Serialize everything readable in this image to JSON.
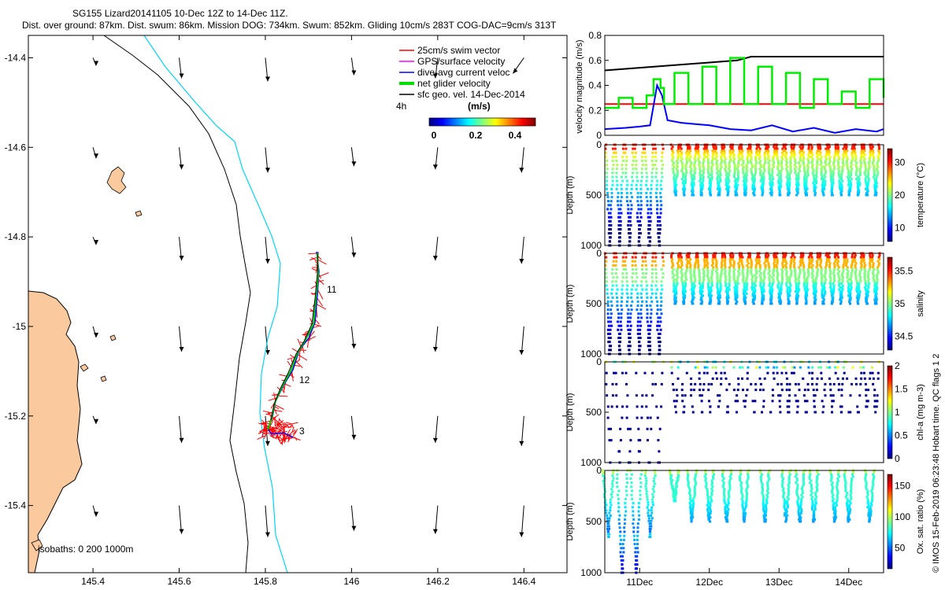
{
  "header": {
    "line1": "SG155 Lizard20141105 10-Dec 12Z to 14-Dec 11Z.",
    "line2": "Dist. over ground: 87km. Dist. swum: 86km. Mission DOG: 734km. Swum: 852km. Gliding 10cm/s 283T COG-DAC=9cm/s 313T"
  },
  "side_credit": "© IMOS 15-Feb-2019 06:23:48 Hobart time. QC flags 1  2",
  "chart_data": [
    {
      "type": "map",
      "name": "glider-track-map",
      "xlim": [
        145.25,
        146.5
      ],
      "ylim": [
        -15.55,
        -14.35
      ],
      "x_ticks": [
        "145.4",
        "145.6",
        "145.8",
        "146",
        "146.2",
        "146.4"
      ],
      "y_ticks": [
        "-14.4",
        "-14.6",
        "-14.8",
        "-15",
        "-15.2",
        "-15.4"
      ],
      "legend": {
        "placement": "top-right",
        "entries": [
          {
            "label": "25cm/s swim vector",
            "color": "#ff0000"
          },
          {
            "label": "GPS/surface velocity",
            "color": "#ff00ff"
          },
          {
            "label": "dive-avg current veloc",
            "color": "#0000ff"
          },
          {
            "label": "net glider velocity",
            "color": "#00cc00"
          },
          {
            "label": "sfc geo. vel. 14-Dec-2014",
            "color": "#000000"
          }
        ],
        "scale_label": "4h",
        "colorbar_unit": "(m/s)",
        "colorbar_ticks": [
          "0",
          "0.2",
          "0.4"
        ]
      },
      "isobaths_label": "isobaths: 0   200  1000m",
      "day_labels": [
        {
          "text": "11",
          "lon": 145.935,
          "lat": -14.895
        },
        {
          "text": "12",
          "lon": 145.875,
          "lat": -15.135
        },
        {
          "text": "3",
          "lon": 145.875,
          "lat": -15.245
        }
      ],
      "geo_vector_grid": {
        "lons": [
          145.4,
          145.6,
          145.8,
          146.0,
          146.2,
          146.4
        ],
        "lats": [
          -14.4,
          -14.6,
          -14.8,
          -15.0,
          -15.2,
          -15.4
        ]
      }
    },
    {
      "type": "line",
      "name": "velocity-magnitude-panel",
      "ylabel": "velocity magnitude (m/s)",
      "ylim": [
        0,
        0.8
      ],
      "y_ticks": [
        "0",
        "0.2",
        "0.4",
        "0.6",
        "0.8"
      ],
      "series": [
        {
          "color": "#000000",
          "x": [
            10.5,
            12.4,
            12.6,
            14.5
          ],
          "values": [
            0.52,
            0.6,
            0.63,
            0.63
          ]
        },
        {
          "color": "#ff0000",
          "x": [
            10.5,
            14.5
          ],
          "values": [
            0.25,
            0.25
          ]
        },
        {
          "color": "#0000ff",
          "x": [
            10.5,
            10.8,
            11.0,
            11.15,
            11.25,
            11.32,
            11.4,
            11.6,
            12.0,
            12.3,
            12.6,
            12.9,
            13.2,
            13.5,
            13.8,
            14.1,
            14.4,
            14.5
          ],
          "values": [
            0.05,
            0.06,
            0.07,
            0.08,
            0.4,
            0.32,
            0.12,
            0.1,
            0.08,
            0.05,
            0.04,
            0.08,
            0.03,
            0.06,
            0.02,
            0.05,
            0.03,
            0.05
          ]
        },
        {
          "color": "#00ee00",
          "x": [
            10.5,
            10.7,
            10.9,
            11.1,
            11.2,
            11.3,
            11.35,
            11.5,
            11.7,
            11.9,
            12.1,
            12.3,
            12.5,
            12.7,
            12.9,
            13.1,
            13.3,
            13.5,
            13.7,
            13.9,
            14.1,
            14.3,
            14.5
          ],
          "values": [
            0.22,
            0.3,
            0.22,
            0.32,
            0.45,
            0.38,
            0.25,
            0.5,
            0.25,
            0.55,
            0.25,
            0.62,
            0.25,
            0.55,
            0.25,
            0.5,
            0.22,
            0.45,
            0.25,
            0.35,
            0.22,
            0.45,
            0.3
          ]
        }
      ]
    },
    {
      "type": "scatter",
      "name": "temperature-panel",
      "ylabel": "Depth (m)",
      "ylim": [
        1000,
        0
      ],
      "y_ticks": [
        "0",
        "500",
        "1000"
      ],
      "colorbar_label": "temperature (°C)",
      "colorbar_ticks": [
        "10",
        "20",
        "30"
      ],
      "colormap": "jet",
      "deep_dives": 6,
      "shallow_dives": 24,
      "deep_depth": 1000,
      "shallow_depth": 500
    },
    {
      "type": "scatter",
      "name": "salinity-panel",
      "ylabel": "Depth (m)",
      "ylim": [
        1000,
        0
      ],
      "y_ticks": [
        "0",
        "500",
        "1000"
      ],
      "colorbar_label": "salinity",
      "colorbar_ticks": [
        "34.5",
        "35",
        "35.5"
      ],
      "colormap": "jet",
      "deep_dives": 6,
      "shallow_dives": 24,
      "deep_depth": 1000,
      "shallow_depth": 500
    },
    {
      "type": "scatter",
      "name": "chlorophyll-panel",
      "ylabel": "Depth (m)",
      "ylim": [
        1000,
        0
      ],
      "y_ticks": [
        "0",
        "500",
        "1000"
      ],
      "colorbar_label": "chl-a (mg m-3)",
      "colorbar_ticks": [
        "0",
        "0.5",
        "1",
        "1.5",
        "2"
      ],
      "colormap": "jet",
      "deep_dives": 6,
      "shallow_dives": 24,
      "deep_depth": 1000,
      "shallow_depth": 500
    },
    {
      "type": "scatter",
      "name": "oxygen-saturation-panel",
      "ylabel": "Depth (m)",
      "ylim": [
        1000,
        0
      ],
      "y_ticks": [
        "0",
        "500",
        "1000"
      ],
      "colorbar_label": "Ox. sat. ratio (%)",
      "colorbar_ticks": [
        "50",
        "100",
        "150"
      ],
      "colormap": "jet",
      "x_ticks": [
        "11Dec",
        "12Dec",
        "13Dec",
        "14Dec"
      ],
      "deep_dives": 4,
      "shallow_dives": 12,
      "deep_depth": 1000,
      "shallow_depth": 500
    }
  ]
}
